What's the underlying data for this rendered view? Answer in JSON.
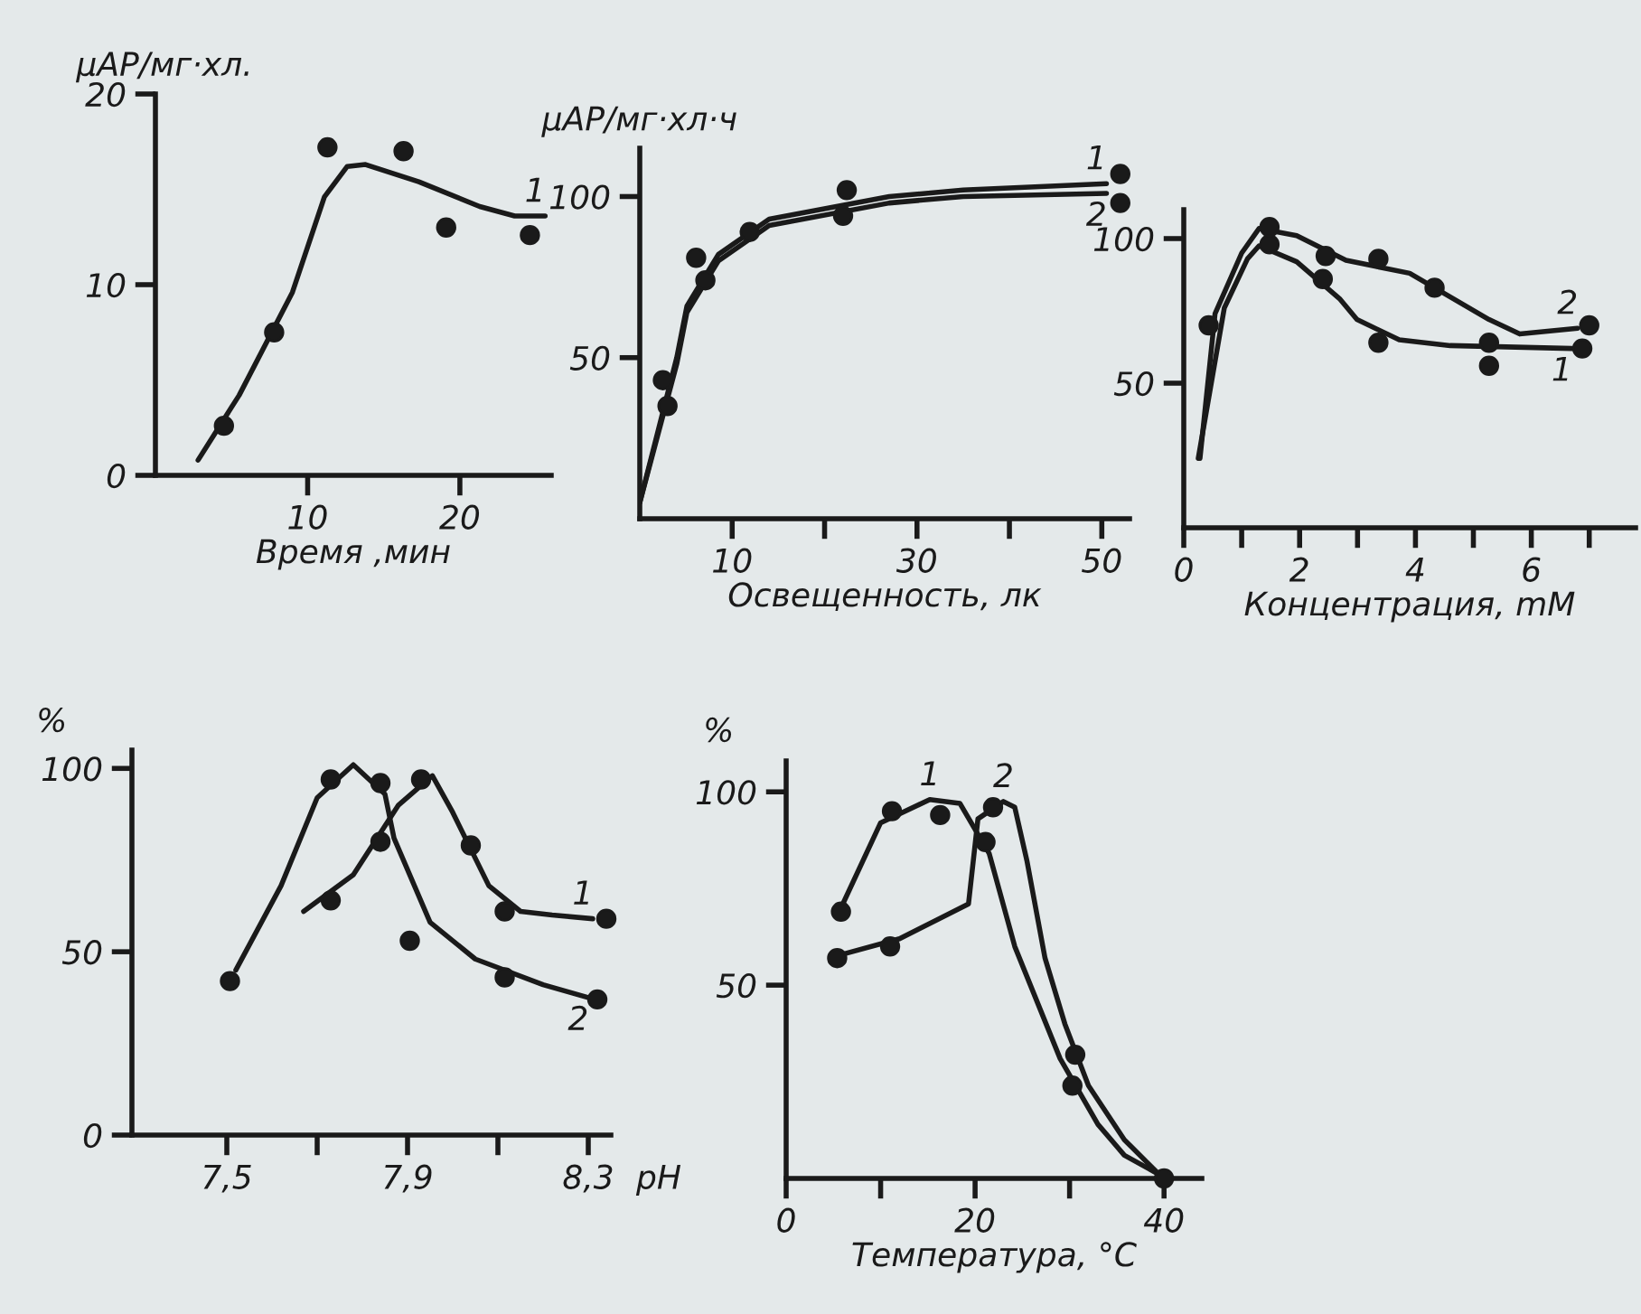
{
  "chart_data": [
    {
      "type": "line",
      "ylabel": "μАР/мг·хл.",
      "xlabel": "Время ,мин",
      "xlim": [
        0,
        26
      ],
      "ylim": [
        0,
        20
      ],
      "xticks": [
        10,
        20
      ],
      "yticks": [
        0,
        10,
        20
      ],
      "series": [
        {
          "color": "#1a1a1a",
          "x": [
            2.8,
            5.5,
            9.0,
            11.1,
            12.6,
            13.8,
            17.3,
            21.3,
            23.6,
            25.6
          ],
          "values": [
            0.8,
            4.2,
            9.6,
            14.6,
            16.2,
            16.3,
            15.4,
            14.1,
            13.6,
            13.6
          ]
        },
        {
          "type": "scatter",
          "marker": "circle",
          "color": "#1a1a1a",
          "x": [
            4.5,
            7.8,
            11.3,
            16.3,
            19.1,
            24.6
          ],
          "values": [
            2.6,
            7.5,
            17.2,
            17.0,
            13.0,
            12.6
          ]
        }
      ],
      "annotations": [
        "1"
      ]
    },
    {
      "type": "line",
      "ylabel": "μАР/мг·хл·ч",
      "xlabel": "Освещенность, лк",
      "xlim": [
        0,
        53
      ],
      "ylim": [
        0,
        115
      ],
      "xticks": [
        10,
        {
          "value": 20,
          "label": null
        },
        30,
        {
          "value": 40,
          "label": null
        },
        50
      ],
      "yticks": [
        50,
        100
      ],
      "series": [
        {
          "color": "#1a1a1a",
          "x": [
            0,
            4,
            5.1,
            8.5,
            14,
            27,
            35,
            50.5
          ],
          "values": [
            5,
            50,
            66,
            82,
            93,
            100,
            102,
            104
          ]
        },
        {
          "color": "#1a1a1a",
          "x": [
            0,
            4,
            5.1,
            8.5,
            14,
            27,
            35,
            50.5
          ],
          "values": [
            5,
            48,
            64,
            80,
            91,
            98,
            100,
            101
          ]
        },
        {
          "type": "scatter",
          "marker": "circle",
          "color": "#1a1a1a",
          "x": [
            2.5,
            6.1,
            11.9,
            22.4,
            52
          ],
          "values": [
            43,
            81,
            89,
            102,
            107
          ]
        },
        {
          "type": "scatter",
          "marker": "circle",
          "color": "#1a1a1a",
          "x": [
            3.0,
            7.1,
            22.0,
            52
          ],
          "values": [
            35,
            74,
            94,
            98
          ]
        }
      ],
      "annotations": [
        "1",
        "2"
      ]
    },
    {
      "type": "line",
      "xlabel": "Концентрация, mM",
      "xlim": [
        0,
        7.8
      ],
      "ylim": [
        0,
        110
      ],
      "xticks": [
        0,
        {
          "value": 1,
          "label": null
        },
        2,
        {
          "value": 3,
          "label": null
        },
        4,
        {
          "value": 5,
          "label": null
        },
        6,
        {
          "value": 7,
          "label": null
        }
      ],
      "yticks": [
        50,
        100
      ],
      "series": [
        {
          "color": "#1a1a1a",
          "x": [
            0.25,
            0.7,
            1.1,
            1.3,
            1.95,
            2.7,
            2.99,
            3.72,
            4.6,
            6.7
          ],
          "values": [
            24,
            76,
            93,
            97.5,
            92,
            79,
            72,
            65,
            63,
            62
          ]
        },
        {
          "color": "#1a1a1a",
          "x": [
            0.28,
            0.54,
            1.0,
            1.3,
            1.95,
            2.8,
            3.9,
            5.27,
            5.8,
            6.8
          ],
          "values": [
            24,
            74,
            95,
            103.5,
            101,
            92.5,
            88,
            72,
            67,
            69
          ]
        },
        {
          "type": "scatter",
          "marker": "circle",
          "color": "#1a1a1a",
          "x": [
            1.48,
            2.4,
            3.36,
            5.27,
            5.27,
            6.88
          ],
          "values": [
            98,
            86,
            64,
            64,
            56,
            62
          ]
        },
        {
          "type": "scatter",
          "marker": "circle",
          "color": "#1a1a1a",
          "x": [
            0.43,
            1.48,
            2.45,
            3.36,
            4.33,
            7.0
          ],
          "values": [
            70,
            104,
            94,
            93,
            83,
            70
          ]
        }
      ],
      "annotations": [
        "1",
        "2"
      ]
    },
    {
      "type": "line",
      "ylabel": "%",
      "xlabel": "pH",
      "xlim": [
        7.29,
        8.35
      ],
      "ylim": [
        0,
        105
      ],
      "xticks": [
        {
          "value": 7.5,
          "label": "7,5"
        },
        {
          "value": 7.7,
          "label": null
        },
        {
          "value": 7.9,
          "label": "7,9"
        },
        {
          "value": 8.1,
          "label": null
        },
        {
          "value": 8.3,
          "label": "8,3"
        }
      ],
      "yticks": [
        0,
        50,
        100
      ],
      "series": [
        {
          "color": "#1a1a1a",
          "x": [
            7.67,
            7.78,
            7.88,
            7.955,
            8.0,
            8.08,
            8.15,
            8.22,
            8.31
          ],
          "values": [
            61,
            71,
            90,
            98,
            88,
            68,
            61,
            60,
            59
          ]
        },
        {
          "color": "#1a1a1a",
          "x": [
            7.52,
            7.62,
            7.7,
            7.78,
            7.85,
            7.87,
            7.95,
            8.05,
            8.2,
            8.3
          ],
          "values": [
            45,
            68,
            92,
            101,
            93,
            81,
            58,
            48,
            41,
            37.5
          ]
        },
        {
          "type": "scatter",
          "marker": "circle",
          "color": "#1a1a1a",
          "x": [
            7.73,
            7.84,
            7.93,
            8.04,
            8.115,
            8.34
          ],
          "values": [
            64,
            80,
            97,
            79,
            61,
            59
          ]
        },
        {
          "type": "scatter",
          "marker": "circle",
          "color": "#1a1a1a",
          "x": [
            7.507,
            7.73,
            7.84,
            7.905,
            8.115,
            8.32
          ],
          "values": [
            42,
            97,
            96,
            53,
            43,
            37
          ]
        }
      ],
      "annotations": [
        "1",
        "2"
      ]
    },
    {
      "type": "line",
      "ylabel": "%",
      "xlabel": "Температура, °С",
      "xlim": [
        0,
        44
      ],
      "ylim": [
        0,
        108
      ],
      "xticks": [
        0,
        {
          "value": 10,
          "label": null
        },
        20,
        {
          "value": 30,
          "label": null
        },
        40
      ],
      "yticks": [
        50,
        100
      ],
      "series": [
        {
          "color": "#1a1a1a",
          "x": [
            6.0,
            10,
            15.2,
            18.4,
            21.5,
            24.2,
            29,
            33,
            35.8,
            39.5
          ],
          "values": [
            71,
            92,
            98,
            97,
            84,
            60,
            31,
            14,
            6,
            1
          ]
        },
        {
          "color": "#1a1a1a",
          "x": [
            6,
            12,
            19.3,
            20.3,
            23,
            24.2,
            25.5,
            27.4,
            29.5,
            32,
            35.8,
            39.5
          ],
          "values": [
            58,
            62,
            71,
            93,
            97.5,
            96,
            82,
            57,
            40,
            24,
            10,
            1
          ]
        },
        {
          "type": "scatter",
          "marker": "circle",
          "color": "#1a1a1a",
          "x": [
            5.8,
            11.2,
            16.3,
            21.1,
            30.3,
            40
          ],
          "values": [
            69,
            95,
            94,
            87,
            24,
            0
          ]
        },
        {
          "type": "scatter",
          "marker": "circle",
          "color": "#1a1a1a",
          "x": [
            5.4,
            11.0,
            21.9,
            30.6
          ],
          "values": [
            57,
            60,
            96,
            32
          ]
        }
      ],
      "annotations": [
        "1",
        "2"
      ]
    }
  ]
}
